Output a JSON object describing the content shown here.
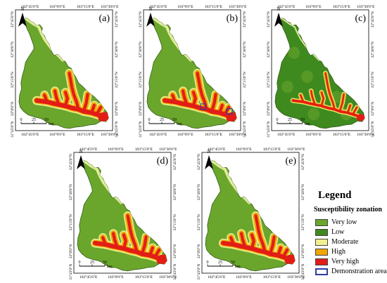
{
  "panels": [
    {
      "id": "a",
      "label": "(a)",
      "top": [
        "102°45'0\"E",
        "103°0'0\"E",
        "103°15'0\"E",
        "103°30'0\"E"
      ],
      "bottom": [
        "102°45'0\"E",
        "103°0'0\"E",
        "103°15'0\"E",
        "103°30'0\"E"
      ],
      "left": [
        "32°45'0\"N",
        "32°30'0\"N",
        "32°15'0\"N",
        "32°0'0\"N",
        "31°45'0\"N"
      ],
      "right": [
        "32°45'0\"N",
        "32°30'0\"N",
        "32°15'0\"N",
        "32°0'0\"N",
        "31°45'0\"N"
      ],
      "demo": false,
      "variant": "standard"
    },
    {
      "id": "b",
      "label": "(b)",
      "top": [
        "102°45'0\"E",
        "103°0'0\"E",
        "103°15'0\"E",
        "103°30'0\"E"
      ],
      "bottom": [
        "102°45'0\"E",
        "103°0'0\"E",
        "103°15'0\"E",
        "103°30'0\"E"
      ],
      "left": [
        "32°45'0\"N",
        "32°30'0\"N",
        "32°15'0\"N",
        "32°0'0\"N",
        "31°45'0\"N"
      ],
      "right": [
        "32°45'0\"N",
        "32°30'0\"N",
        "32°15'0\"N",
        "32°0'0\"N",
        "31°45'0\"N"
      ],
      "demo": true,
      "variant": "standard"
    },
    {
      "id": "c",
      "label": "(c)",
      "top": [
        "102°45'0\"E",
        "103°0'0\"E",
        "103°15'0\"E",
        "103°30'0\"E"
      ],
      "bottom": [
        "102°45'0\"E",
        "103°0'0\"E",
        "103°15'0\"E",
        "103°30'0\"E"
      ],
      "left": [
        "32°45'0\"N",
        "32°30'0\"N",
        "32°15'0\"N",
        "32°0'0\"N",
        "31°45'0\"N"
      ],
      "right": [
        "32°45'0\"N",
        "32°30'0\"N",
        "32°15'0\"N",
        "32°0'0\"N",
        "31°45'0\"N"
      ],
      "demo": false,
      "variant": "low"
    },
    {
      "id": "d",
      "label": "(d)",
      "top": [
        "102°45'0\"E",
        "103°0'0\"E",
        "103°15'0\"E",
        "103°30'0\"E"
      ],
      "bottom": [
        "102°45'0\"E",
        "103°0'0\"E",
        "103°15'0\"E",
        "103°30'0\"E"
      ],
      "left": [
        "32°45'0\"N",
        "32°30'0\"N",
        "32°15'0\"N",
        "32°0'0\"N",
        "31°45'0\"N"
      ],
      "right": [
        "32°45'0\"N",
        "32°30'0\"N",
        "32°15'0\"N",
        "32°0'0\"N",
        "31°45'0\"N"
      ],
      "demo": false,
      "variant": "standard"
    },
    {
      "id": "e",
      "label": "(e)",
      "top": [
        "102°45'0\"E",
        "103°0'0\"E",
        "103°15'0\"E",
        "103°30'0\"E"
      ],
      "bottom": [
        "102°45'0\"E",
        "103°0'0\"E",
        "103°15'0\"E",
        "103°30'0\"E"
      ],
      "left": [
        "32°45'0\"N",
        "32°30'0\"N",
        "32°15'0\"N",
        "32°0'0\"N",
        "31°45'0\"N"
      ],
      "right": [
        "32°45'0\"N",
        "32°30'0\"N",
        "32°15'0\"N",
        "32°0'0\"N",
        "31°45'0\"N"
      ],
      "demo": false,
      "variant": "standard"
    }
  ],
  "north_label": "N",
  "scale": {
    "ticks": [
      "0",
      "25",
      "50"
    ],
    "unit": "km"
  },
  "legend": {
    "title": "Legend",
    "subtitle": "Susceptibility zonation",
    "items": [
      {
        "label": "Very low",
        "color": "#6aa62c",
        "border": "#444444"
      },
      {
        "label": "Low",
        "color": "#3e8a1f",
        "border": "#444444"
      },
      {
        "label": "Moderate",
        "color": "#f2f08e",
        "border": "#444444"
      },
      {
        "label": "High",
        "color": "#f0a500",
        "border": "#444444"
      },
      {
        "label": "Very high",
        "color": "#e21d17",
        "border": "#444444"
      },
      {
        "label": "Demonstration area",
        "color": "#ffffff",
        "border": "#2c3f9e"
      }
    ]
  },
  "colors": {
    "very_low": "#6aa62c",
    "low": "#3e8a1f",
    "moderate": "#f2f08e",
    "high": "#f0a500",
    "very_high": "#e21d17",
    "river": "#e5ee9a",
    "demo": "#2c3f9e"
  }
}
